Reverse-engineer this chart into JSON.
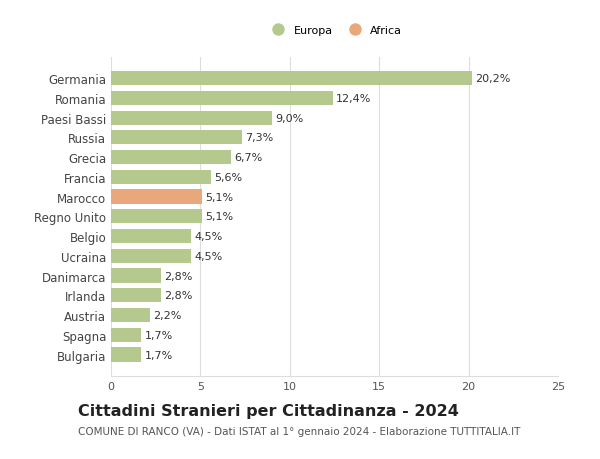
{
  "categories": [
    "Bulgaria",
    "Spagna",
    "Austria",
    "Irlanda",
    "Danimarca",
    "Ucraina",
    "Belgio",
    "Regno Unito",
    "Marocco",
    "Francia",
    "Grecia",
    "Russia",
    "Paesi Bassi",
    "Romania",
    "Germania"
  ],
  "values": [
    1.7,
    1.7,
    2.2,
    2.8,
    2.8,
    4.5,
    4.5,
    5.1,
    5.1,
    5.6,
    6.7,
    7.3,
    9.0,
    12.4,
    20.2
  ],
  "labels": [
    "1,7%",
    "1,7%",
    "2,2%",
    "2,8%",
    "2,8%",
    "4,5%",
    "4,5%",
    "5,1%",
    "5,1%",
    "5,6%",
    "6,7%",
    "7,3%",
    "9,0%",
    "12,4%",
    "20,2%"
  ],
  "colors": [
    "#b5c98e",
    "#b5c98e",
    "#b5c98e",
    "#b5c98e",
    "#b5c98e",
    "#b5c98e",
    "#b5c98e",
    "#b5c98e",
    "#e8a87c",
    "#b5c98e",
    "#b5c98e",
    "#b5c98e",
    "#b5c98e",
    "#b5c98e",
    "#b5c98e"
  ],
  "europa_color": "#b5c98e",
  "africa_color": "#e8a87c",
  "xlim": [
    0,
    25
  ],
  "xticks": [
    0,
    5,
    10,
    15,
    20,
    25
  ],
  "title": "Cittadini Stranieri per Cittadinanza - 2024",
  "subtitle": "COMUNE DI RANCO (VA) - Dati ISTAT al 1° gennaio 2024 - Elaborazione TUTTITALIA.IT",
  "background_color": "#ffffff",
  "grid_color": "#dddddd",
  "bar_height": 0.72,
  "label_fontsize": 8.0,
  "ytick_fontsize": 8.5,
  "xtick_fontsize": 8.0,
  "title_fontsize": 11.5,
  "subtitle_fontsize": 7.5
}
